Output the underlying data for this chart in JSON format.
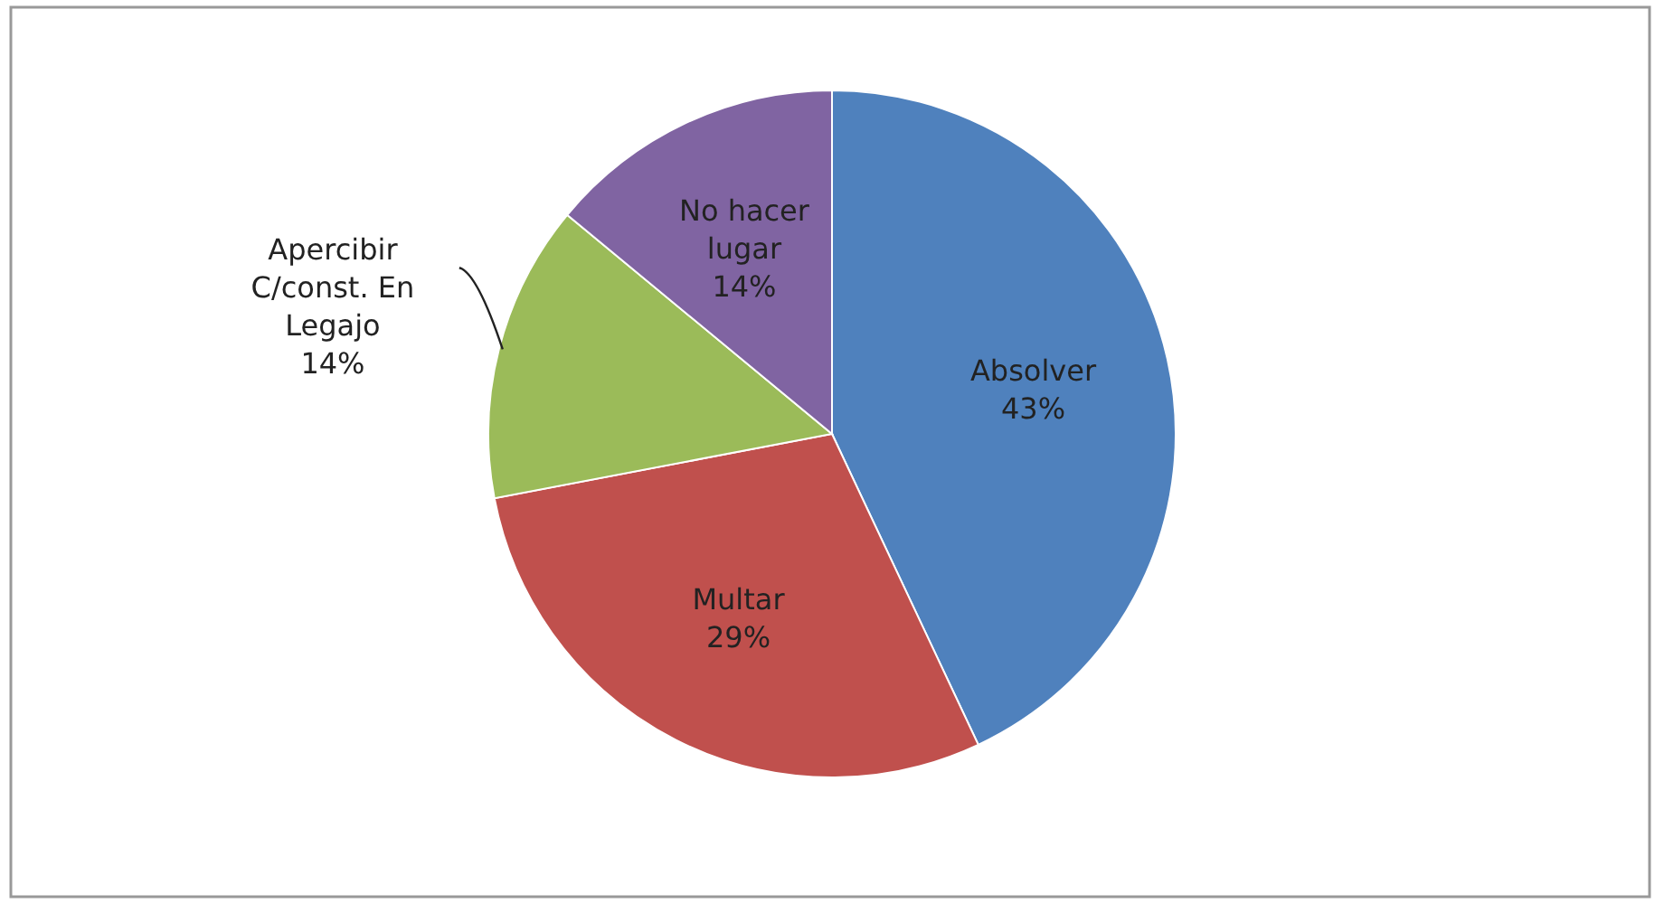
{
  "chart_data": {
    "type": "pie",
    "categories": [
      "Absolver",
      "Multar",
      "Apercibir C/const. En Legajo",
      "No hacer lugar"
    ],
    "values": [
      43,
      29,
      14,
      14
    ],
    "colors": [
      "#4f81bd",
      "#c0504d",
      "#9bbb59",
      "#8064a2"
    ],
    "value_labels": [
      "43%",
      "29%",
      "14%",
      "14%"
    ],
    "legend": false
  }
}
